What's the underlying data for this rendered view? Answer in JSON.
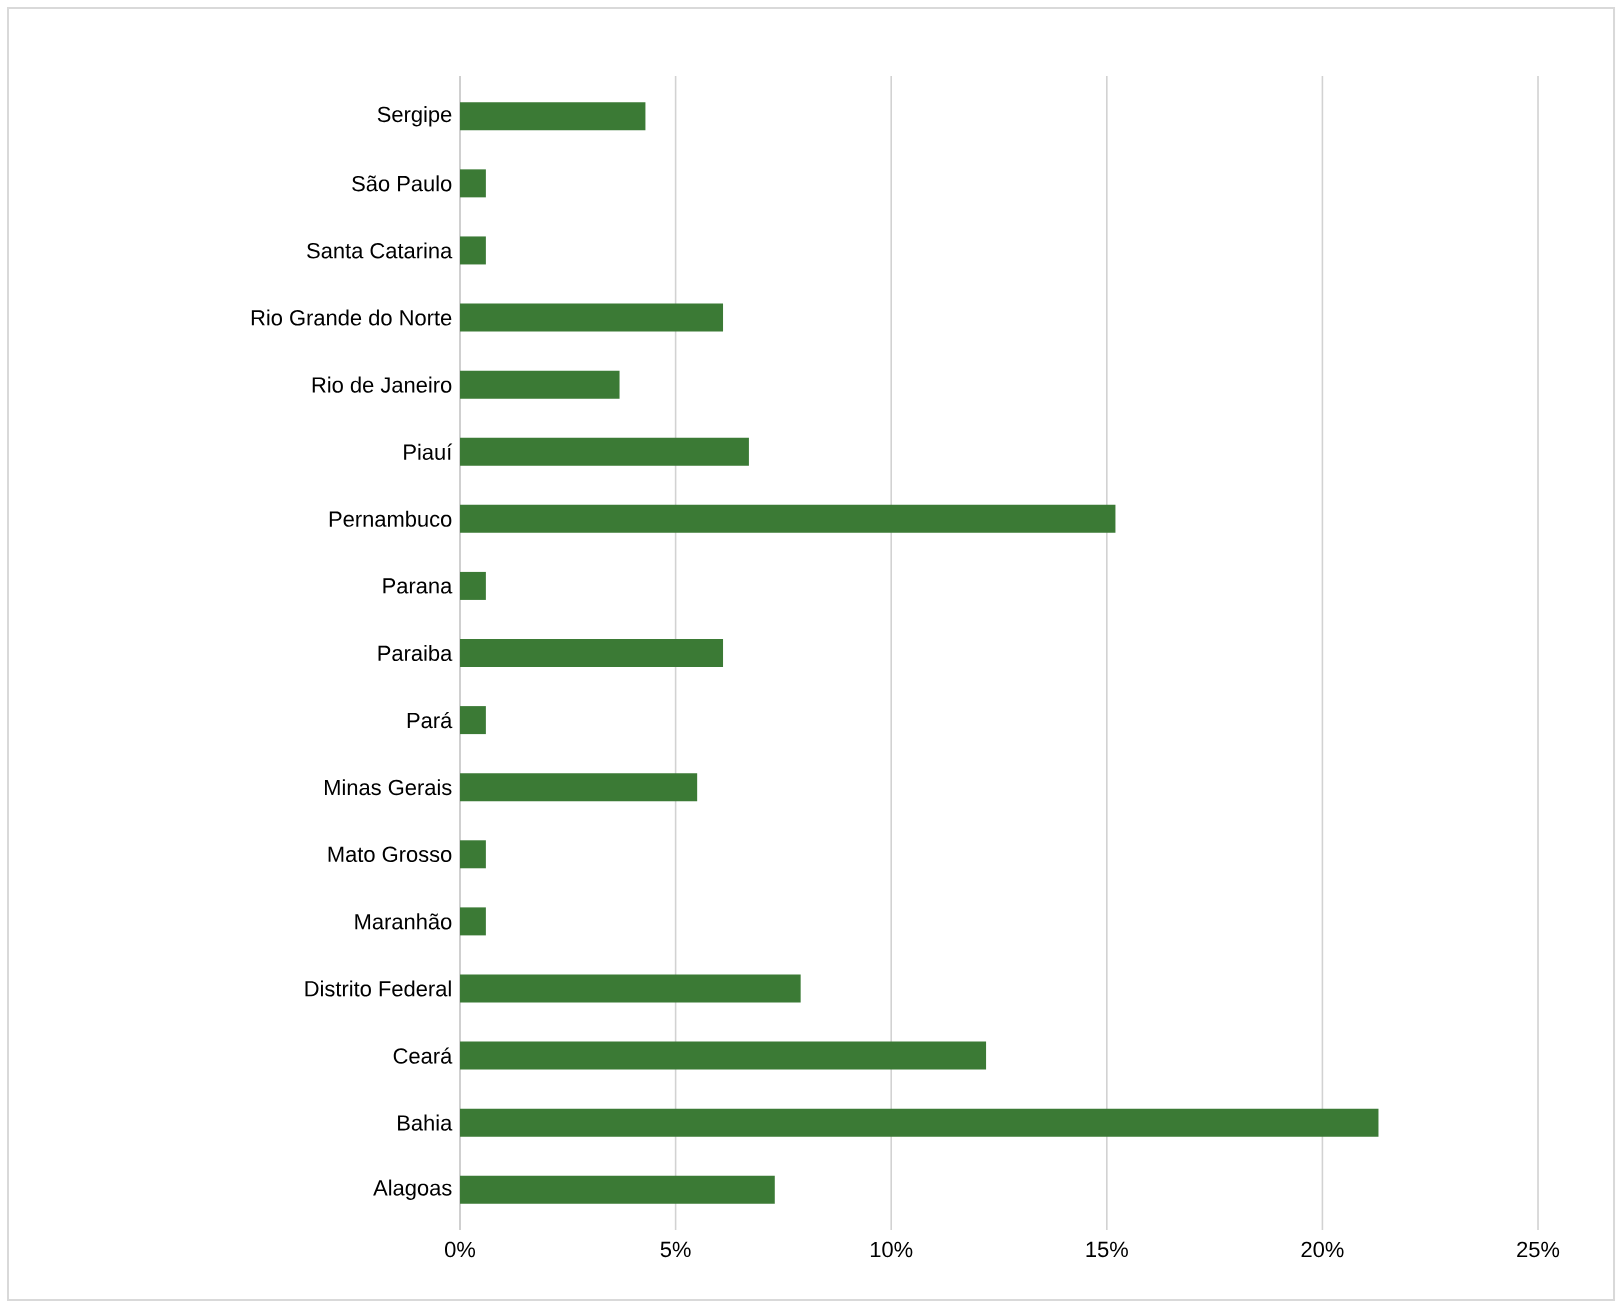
{
  "chart_data": {
    "type": "bar",
    "orientation": "horizontal",
    "categories": [
      "Sergipe",
      "São Paulo",
      "Santa Catarina",
      "Rio Grande do Norte",
      "Rio de Janeiro",
      "Piauí",
      "Pernambuco",
      "Parana",
      "Paraiba",
      "Pará",
      "Minas Gerais",
      "Mato Grosso",
      "Maranhão",
      "Distrito Federal",
      "Ceará",
      "Bahia",
      "Alagoas"
    ],
    "values": [
      4.3,
      0.6,
      0.6,
      6.1,
      3.7,
      6.7,
      15.2,
      0.6,
      6.1,
      0.6,
      5.5,
      0.6,
      0.6,
      7.9,
      12.2,
      21.3,
      7.3
    ],
    "color": "#3b7a35",
    "xlim": [
      0,
      25
    ],
    "xticks": [
      {
        "value": 0,
        "label": "0%"
      },
      {
        "value": 5,
        "label": "5%"
      },
      {
        "value": 10,
        "label": "10%"
      },
      {
        "value": 15,
        "label": "15%"
      },
      {
        "value": 20,
        "label": "20%"
      },
      {
        "value": 25,
        "label": "25%"
      }
    ],
    "grid": "x"
  }
}
